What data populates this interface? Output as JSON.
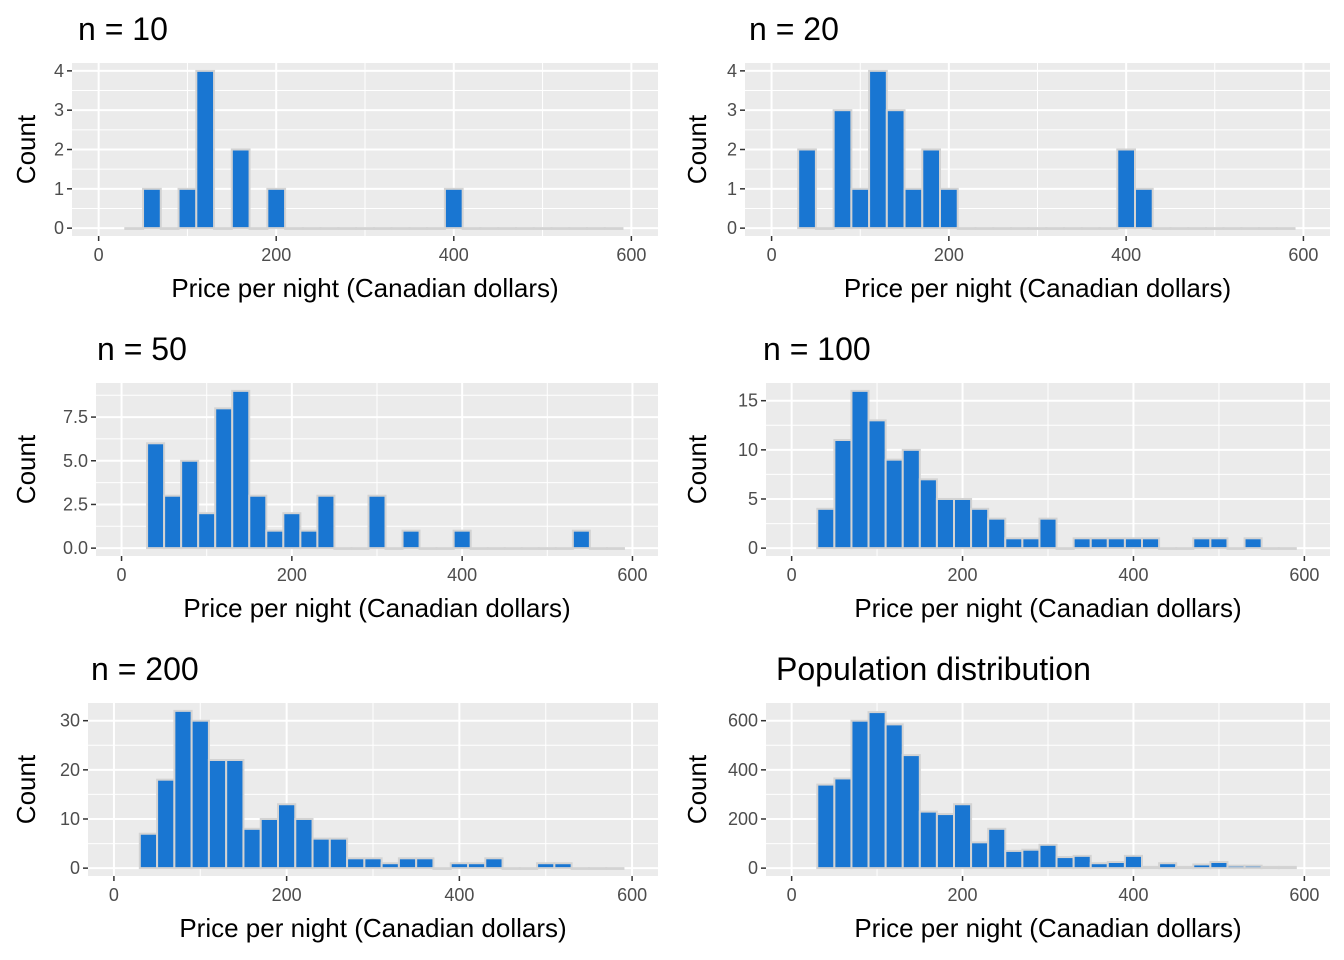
{
  "chart_data": [
    {
      "type": "bar",
      "title": "n = 10",
      "xlabel": "Price per night (Canadian dollars)",
      "ylabel": "Count",
      "xlim": [
        0,
        600
      ],
      "ylim": [
        0,
        4
      ],
      "x_ticks": [
        "0",
        "200",
        "400",
        "600"
      ],
      "y_ticks": [
        "0",
        "1",
        "2",
        "3",
        "4"
      ],
      "bin_width": 20,
      "bins_start": [
        30,
        50,
        70,
        90,
        110,
        130,
        150,
        170,
        190,
        210,
        230,
        250,
        270,
        290,
        310,
        330,
        350,
        370,
        390,
        410,
        430,
        450,
        470,
        490,
        510,
        530,
        550,
        570
      ],
      "values": [
        0,
        1,
        0,
        1,
        4,
        0,
        2,
        0,
        1,
        0,
        0,
        0,
        0,
        0,
        0,
        0,
        0,
        0,
        1,
        0,
        0,
        0,
        0,
        0,
        0,
        0,
        0,
        0
      ]
    },
    {
      "type": "bar",
      "title": "n = 20",
      "xlabel": "Price per night (Canadian dollars)",
      "ylabel": "Count",
      "xlim": [
        0,
        600
      ],
      "ylim": [
        0,
        4
      ],
      "x_ticks": [
        "0",
        "200",
        "400",
        "600"
      ],
      "y_ticks": [
        "0",
        "1",
        "2",
        "3",
        "4"
      ],
      "bin_width": 20,
      "bins_start": [
        30,
        50,
        70,
        90,
        110,
        130,
        150,
        170,
        190,
        210,
        230,
        250,
        270,
        290,
        310,
        330,
        350,
        370,
        390,
        410,
        430,
        450,
        470,
        490,
        510,
        530,
        550,
        570
      ],
      "values": [
        2,
        0,
        3,
        1,
        4,
        3,
        1,
        2,
        1,
        0,
        0,
        0,
        0,
        0,
        0,
        0,
        0,
        0,
        2,
        1,
        0,
        0,
        0,
        0,
        0,
        0,
        0,
        0
      ]
    },
    {
      "type": "bar",
      "title": "n = 50",
      "xlabel": "Price per night (Canadian dollars)",
      "ylabel": "Count",
      "xlim": [
        0,
        600
      ],
      "ylim": [
        0,
        9
      ],
      "x_ticks": [
        "0",
        "200",
        "400",
        "600"
      ],
      "y_ticks": [
        "0.0",
        "2.5",
        "5.0",
        "7.5"
      ],
      "bin_width": 20,
      "bins_start": [
        30,
        50,
        70,
        90,
        110,
        130,
        150,
        170,
        190,
        210,
        230,
        250,
        270,
        290,
        310,
        330,
        350,
        370,
        390,
        410,
        430,
        450,
        470,
        490,
        510,
        530,
        550,
        570
      ],
      "values": [
        6,
        3,
        5,
        2,
        8,
        9,
        3,
        1,
        2,
        1,
        3,
        0,
        0,
        3,
        0,
        1,
        0,
        0,
        1,
        0,
        0,
        0,
        0,
        0,
        0,
        1,
        0,
        0
      ]
    },
    {
      "type": "bar",
      "title": "n = 100",
      "xlabel": "Price per night (Canadian dollars)",
      "ylabel": "Count",
      "xlim": [
        0,
        600
      ],
      "ylim": [
        0,
        16
      ],
      "x_ticks": [
        "0",
        "200",
        "400",
        "600"
      ],
      "y_ticks": [
        "0",
        "5",
        "10",
        "15"
      ],
      "bin_width": 20,
      "bins_start": [
        30,
        50,
        70,
        90,
        110,
        130,
        150,
        170,
        190,
        210,
        230,
        250,
        270,
        290,
        310,
        330,
        350,
        370,
        390,
        410,
        430,
        450,
        470,
        490,
        510,
        530,
        550,
        570
      ],
      "values": [
        4,
        11,
        16,
        13,
        9,
        10,
        7,
        5,
        5,
        4,
        3,
        1,
        1,
        3,
        0,
        1,
        1,
        1,
        1,
        1,
        0,
        0,
        1,
        1,
        0,
        1,
        0,
        0
      ]
    },
    {
      "type": "bar",
      "title": "n = 200",
      "xlabel": "Price per night (Canadian dollars)",
      "ylabel": "Count",
      "xlim": [
        0,
        600
      ],
      "ylim": [
        0,
        32
      ],
      "x_ticks": [
        "0",
        "200",
        "400",
        "600"
      ],
      "y_ticks": [
        "0",
        "10",
        "20",
        "30"
      ],
      "bin_width": 20,
      "bins_start": [
        30,
        50,
        70,
        90,
        110,
        130,
        150,
        170,
        190,
        210,
        230,
        250,
        270,
        290,
        310,
        330,
        350,
        370,
        390,
        410,
        430,
        450,
        470,
        490,
        510,
        530,
        550,
        570
      ],
      "values": [
        7,
        18,
        32,
        30,
        22,
        22,
        8,
        10,
        13,
        10,
        6,
        6,
        2,
        2,
        1,
        2,
        2,
        0,
        1,
        1,
        2,
        0,
        0,
        1,
        1,
        0,
        0,
        0
      ]
    },
    {
      "type": "bar",
      "title": "Population distribution",
      "xlabel": "Price per night (Canadian dollars)",
      "ylabel": "Count",
      "xlim": [
        0,
        600
      ],
      "ylim": [
        0,
        640
      ],
      "x_ticks": [
        "0",
        "200",
        "400",
        "600"
      ],
      "y_ticks": [
        "0",
        "200",
        "400",
        "600"
      ],
      "bin_width": 20,
      "bins_start": [
        30,
        50,
        70,
        90,
        110,
        130,
        150,
        170,
        190,
        210,
        230,
        250,
        270,
        290,
        310,
        330,
        350,
        370,
        390,
        410,
        430,
        450,
        470,
        490,
        510,
        530,
        550,
        570
      ],
      "values": [
        340,
        365,
        600,
        635,
        585,
        460,
        230,
        220,
        260,
        105,
        160,
        70,
        75,
        95,
        45,
        50,
        20,
        25,
        50,
        5,
        20,
        5,
        15,
        25,
        10,
        10,
        5,
        5
      ]
    }
  ],
  "colors": {
    "bar_fill": "#1976d2",
    "bar_edge": "#d3d3d3",
    "panel_bg": "#ebebeb",
    "grid": "#ffffff",
    "text": "#000000",
    "tick_text": "#4d4d4d"
  }
}
